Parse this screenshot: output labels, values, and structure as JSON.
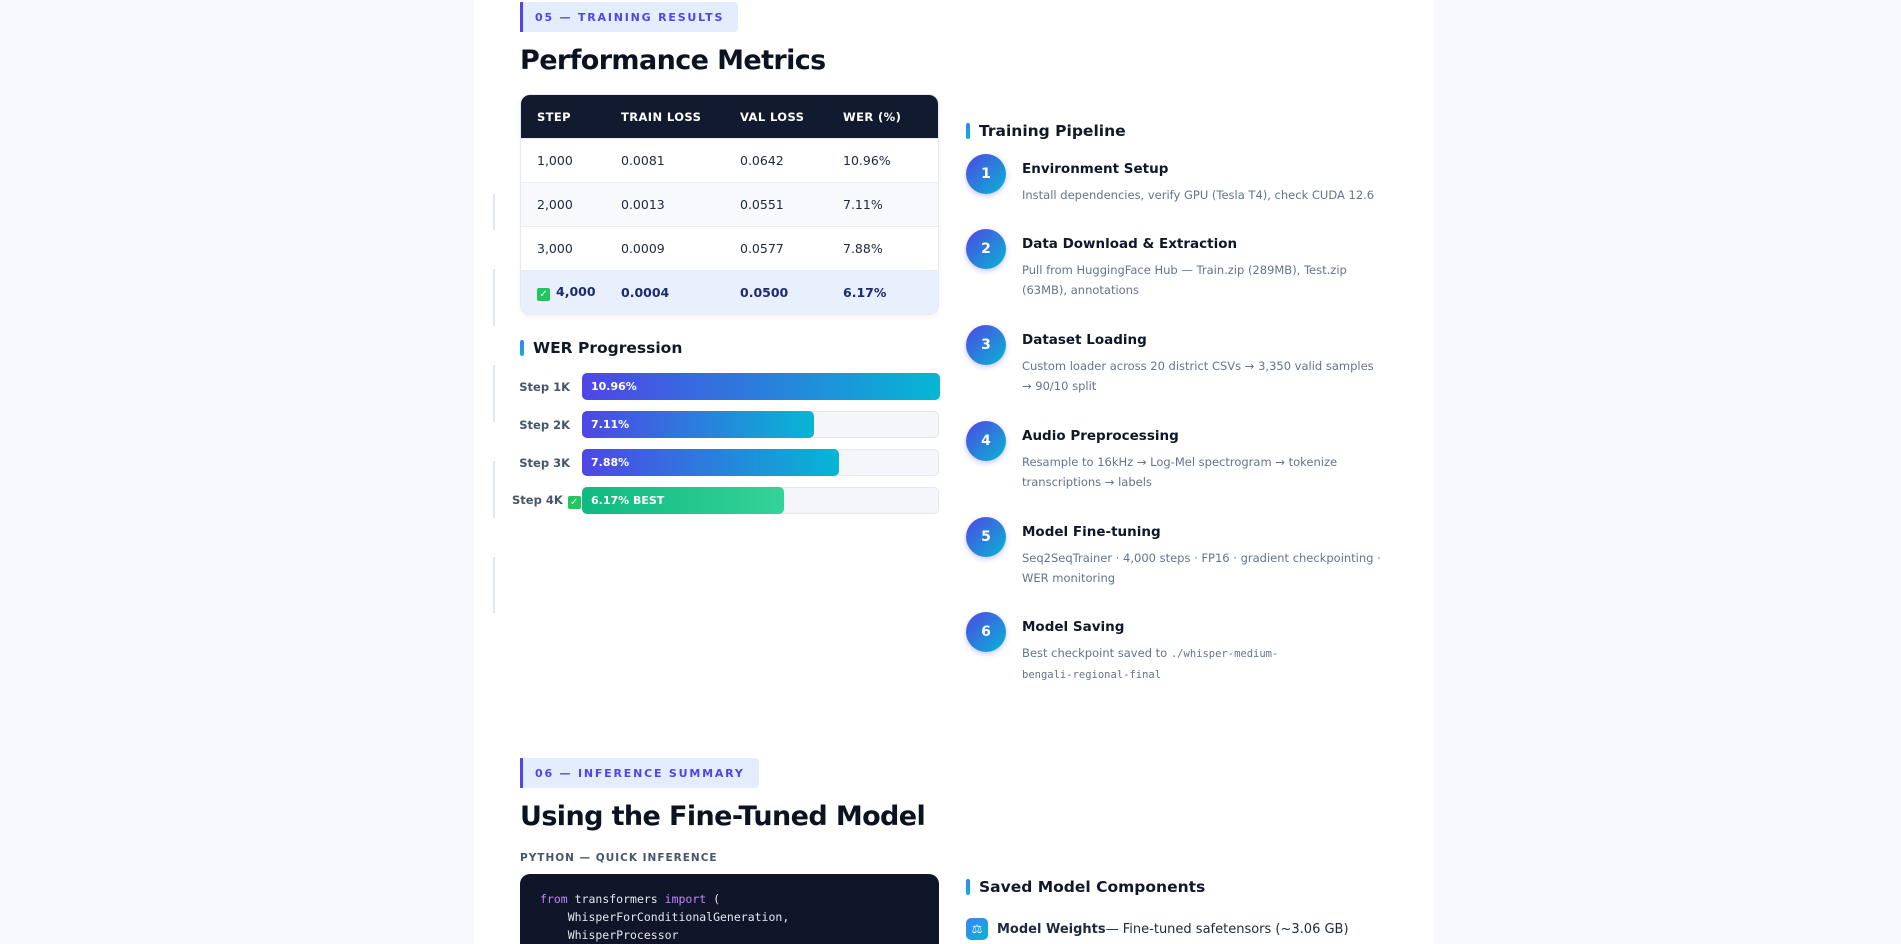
{
  "results": {
    "tag": "05 — TRAINING RESULTS",
    "title": "Performance Metrics",
    "table": {
      "headers": [
        "STEP",
        "TRAIN LOSS",
        "VAL LOSS",
        "WER (%)"
      ],
      "rows": [
        [
          "1,000",
          "0.0081",
          "0.0642",
          "10.96%"
        ],
        [
          "2,000",
          "0.0013",
          "0.0551",
          "7.11%"
        ],
        [
          "3,000",
          "0.0009",
          "0.0577",
          "7.88%"
        ],
        [
          "4,000",
          "0.0004",
          "0.0500",
          "6.17%"
        ]
      ],
      "best_row_index": 3,
      "best_icon": "check-box-icon"
    },
    "wer_progression": {
      "title": "WER Progression",
      "bars": [
        {
          "label": "Step 1K",
          "text": "10.96%",
          "value": 10.96
        },
        {
          "label": "Step 2K",
          "text": "7.11%",
          "value": 7.11
        },
        {
          "label": "Step 3K",
          "text": "7.88%",
          "value": 7.88
        },
        {
          "label": "Step 4K",
          "text": "6.17% BEST",
          "value": 6.17,
          "best": true
        }
      ]
    },
    "pipeline": {
      "title": "Training Pipeline",
      "steps": [
        {
          "num": "1",
          "title": "Environment Setup",
          "desc": "Install dependencies, verify GPU (Tesla T4), check CUDA 12.6"
        },
        {
          "num": "2",
          "title": "Data Download & Extraction",
          "desc": "Pull from HuggingFace Hub — Train.zip (289MB), Test.zip (63MB), annotations"
        },
        {
          "num": "3",
          "title": "Dataset Loading",
          "desc": "Custom loader across 20 district CSVs → 3,350 valid samples → 90/10 split"
        },
        {
          "num": "4",
          "title": "Audio Preprocessing",
          "desc": "Resample to 16kHz → Log-Mel spectrogram → tokenize transcriptions → labels"
        },
        {
          "num": "5",
          "title": "Model Fine-tuning",
          "desc": "Seq2SeqTrainer · 4,000 steps · FP16 · gradient checkpointing · WER monitoring"
        },
        {
          "num": "6",
          "title": "Model Saving",
          "desc": "Best checkpoint saved to ",
          "code": "./whisper-medium-bengali-regional-final"
        }
      ]
    }
  },
  "inference": {
    "tag": "06 — INFERENCE SUMMARY",
    "title": "Using the Fine-Tuned Model",
    "code_label": "PYTHON — QUICK INFERENCE",
    "code": {
      "kw_from": "from",
      "module": " transformers ",
      "kw_import": "import",
      "rest": " (\n    WhisperForConditionalGeneration,\n    WhisperProcessor"
    },
    "saved": {
      "title": "Saved Model Components",
      "items": [
        {
          "icon": "weights-icon",
          "name": "Model Weights",
          "desc": " — Fine-tuned safetensors (~3.06 GB)"
        }
      ]
    }
  },
  "colors": {
    "accent": "#4f46e5",
    "accent2": "#06b6d4",
    "best": "#10b981",
    "table_header": "#111a2e"
  }
}
